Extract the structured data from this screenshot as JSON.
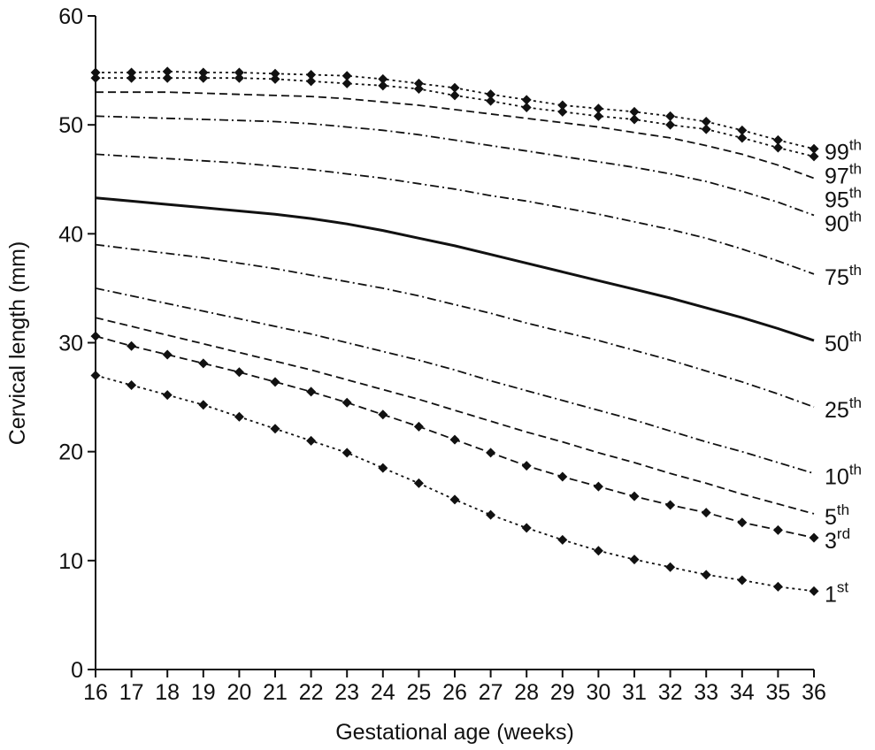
{
  "chart_data": {
    "type": "line",
    "x_label": "Gestational age (weeks)",
    "y_label": "Cervical length (mm)",
    "x": [
      16,
      17,
      18,
      19,
      20,
      21,
      22,
      23,
      24,
      25,
      26,
      27,
      28,
      29,
      30,
      31,
      32,
      33,
      34,
      35,
      36
    ],
    "xlim": [
      16,
      36
    ],
    "xticks": [
      16,
      17,
      18,
      19,
      20,
      21,
      22,
      23,
      24,
      25,
      26,
      27,
      28,
      29,
      30,
      31,
      32,
      33,
      34,
      35,
      36
    ],
    "ylim": [
      0,
      60
    ],
    "yticks": [
      0,
      10,
      20,
      30,
      40,
      50,
      60
    ],
    "series": [
      {
        "name": "99th",
        "color": "#111111",
        "style": "dotted",
        "markers": true,
        "values": [
          54.8,
          54.8,
          54.9,
          54.8,
          54.8,
          54.7,
          54.6,
          54.5,
          54.2,
          53.8,
          53.4,
          52.8,
          52.3,
          51.8,
          51.5,
          51.2,
          50.8,
          50.3,
          49.5,
          48.6,
          47.8
        ]
      },
      {
        "name": "97th",
        "color": "#111111",
        "style": "dotted",
        "markers": true,
        "values": [
          54.3,
          54.3,
          54.3,
          54.3,
          54.3,
          54.2,
          54.0,
          53.8,
          53.6,
          53.3,
          52.7,
          52.2,
          51.6,
          51.2,
          50.8,
          50.5,
          50.0,
          49.6,
          48.8,
          47.9,
          47.1
        ]
      },
      {
        "name": "95th",
        "color": "#111111",
        "style": "dashed",
        "markers": false,
        "values": [
          53.0,
          53.0,
          53.0,
          52.9,
          52.8,
          52.7,
          52.6,
          52.4,
          52.1,
          51.8,
          51.4,
          51.0,
          50.6,
          50.2,
          49.8,
          49.3,
          48.8,
          48.1,
          47.3,
          46.3,
          45.1
        ]
      },
      {
        "name": "90th",
        "color": "#111111",
        "style": "dashdot",
        "markers": false,
        "values": [
          50.8,
          50.7,
          50.6,
          50.5,
          50.4,
          50.3,
          50.1,
          49.8,
          49.5,
          49.1,
          48.6,
          48.1,
          47.6,
          47.1,
          46.6,
          46.1,
          45.5,
          44.8,
          43.9,
          42.9,
          41.7
        ]
      },
      {
        "name": "75th",
        "color": "#111111",
        "style": "dashdot",
        "markers": false,
        "values": [
          47.3,
          47.1,
          46.9,
          46.7,
          46.5,
          46.2,
          45.9,
          45.5,
          45.1,
          44.6,
          44.1,
          43.5,
          43.0,
          42.4,
          41.8,
          41.1,
          40.4,
          39.6,
          38.6,
          37.5,
          36.3
        ]
      },
      {
        "name": "50th",
        "color": "#111111",
        "style": "solid",
        "markers": false,
        "values": [
          43.3,
          43.0,
          42.7,
          42.4,
          42.1,
          41.8,
          41.4,
          40.9,
          40.3,
          39.6,
          38.9,
          38.1,
          37.3,
          36.5,
          35.7,
          34.9,
          34.1,
          33.2,
          32.3,
          31.3,
          30.2
        ]
      },
      {
        "name": "25th",
        "color": "#111111",
        "style": "dashdot",
        "markers": false,
        "values": [
          39.0,
          38.6,
          38.2,
          37.8,
          37.3,
          36.8,
          36.2,
          35.6,
          35.0,
          34.3,
          33.5,
          32.7,
          31.8,
          31.0,
          30.2,
          29.3,
          28.4,
          27.4,
          26.4,
          25.3,
          24.1
        ]
      },
      {
        "name": "10th",
        "color": "#111111",
        "style": "dashdot",
        "markers": false,
        "values": [
          35.0,
          34.3,
          33.6,
          32.9,
          32.2,
          31.5,
          30.8,
          30.0,
          29.2,
          28.4,
          27.5,
          26.5,
          25.6,
          24.7,
          23.8,
          22.9,
          21.9,
          20.9,
          20.0,
          19.0,
          18.0
        ]
      },
      {
        "name": "5th",
        "color": "#111111",
        "style": "dashed",
        "markers": false,
        "values": [
          32.3,
          31.5,
          30.7,
          29.9,
          29.1,
          28.3,
          27.5,
          26.6,
          25.7,
          24.8,
          23.8,
          22.8,
          21.8,
          20.9,
          19.9,
          19.0,
          18.0,
          17.1,
          16.1,
          15.2,
          14.3
        ]
      },
      {
        "name": "3rd",
        "color": "#111111",
        "style": "dashed",
        "markers": true,
        "values": [
          30.6,
          29.7,
          28.9,
          28.1,
          27.3,
          26.4,
          25.5,
          24.5,
          23.4,
          22.3,
          21.1,
          19.9,
          18.7,
          17.7,
          16.8,
          15.9,
          15.1,
          14.4,
          13.5,
          12.8,
          12.1
        ]
      },
      {
        "name": "1st",
        "color": "#111111",
        "style": "dotted",
        "markers": true,
        "values": [
          27.0,
          26.1,
          25.2,
          24.3,
          23.2,
          22.1,
          21.0,
          19.9,
          18.5,
          17.1,
          15.6,
          14.2,
          13.0,
          11.9,
          10.9,
          10.1,
          9.4,
          8.7,
          8.2,
          7.6,
          7.2
        ]
      }
    ]
  }
}
